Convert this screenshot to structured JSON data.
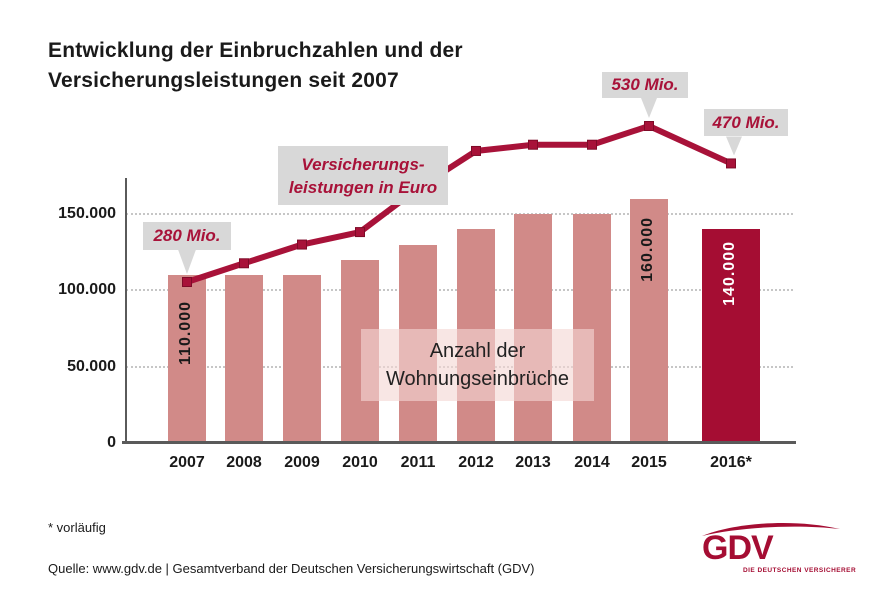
{
  "title": {
    "line1": "Entwicklung der Einbruchzahlen und der",
    "line2": "Versicherungsleistungen seit 2007"
  },
  "chart_data": {
    "type": "bar+line",
    "categories": [
      "2007",
      "2008",
      "2009",
      "2010",
      "2011",
      "2012",
      "2013",
      "2014",
      "2015",
      "2016*"
    ],
    "series": [
      {
        "name": "Anzahl der Wohnungseinbrüche",
        "type": "bar",
        "values": [
          110000,
          110000,
          110000,
          120000,
          130000,
          140000,
          150000,
          150000,
          160000,
          140000
        ]
      },
      {
        "name": "Versicherungsleistungen in Euro",
        "type": "line",
        "unit": "Mio. Euro",
        "values": [
          280,
          310,
          340,
          360,
          430,
          490,
          500,
          500,
          530,
          470
        ]
      }
    ],
    "bar_value_labels": [
      {
        "category": "2007",
        "text": "110.000",
        "color": "dark"
      },
      {
        "category": "2015",
        "text": "160.000",
        "color": "dark"
      },
      {
        "category": "2016*",
        "text": "140.000",
        "color": "light"
      }
    ],
    "callouts": [
      {
        "category": "2007",
        "text": "280 Mio."
      },
      {
        "category": "2015",
        "text": "530 Mio."
      },
      {
        "category": "2016*",
        "text": "470 Mio."
      }
    ],
    "line_label": {
      "line1": "Versicherungs-",
      "line2": "leistungen in Euro"
    },
    "bar_label": {
      "line1": "Anzahl der",
      "line2": "Wohnungseinbrüche"
    },
    "y_ticks": [
      "150.000",
      "100.000",
      "50.000",
      "0"
    ],
    "ylim": [
      0,
      175000
    ],
    "grid": true,
    "highlighted_category": "2016*"
  },
  "footnote": "* vorläufig",
  "source": "Quelle: www.gdv.de | Gesamtverband der Deutschen Versicherungswirtschaft (GDV)",
  "logo": {
    "name": "GDV",
    "tagline": "DIE DEUTSCHEN VERSICHERER"
  },
  "colors": {
    "bar_pink": "#d18a88",
    "accent_red": "#a50d33",
    "line_red": "#a81239",
    "marker_border": "#7e0b28",
    "callout_bg": "#d8d8d8",
    "grid_gray": "#c6c6c6",
    "axis_gray": "#5a5a5a",
    "text_dark": "#1a1a1a",
    "bar_label_light": "#ffffff",
    "overlay_pink": "rgba(243,214,211,0.62)"
  }
}
